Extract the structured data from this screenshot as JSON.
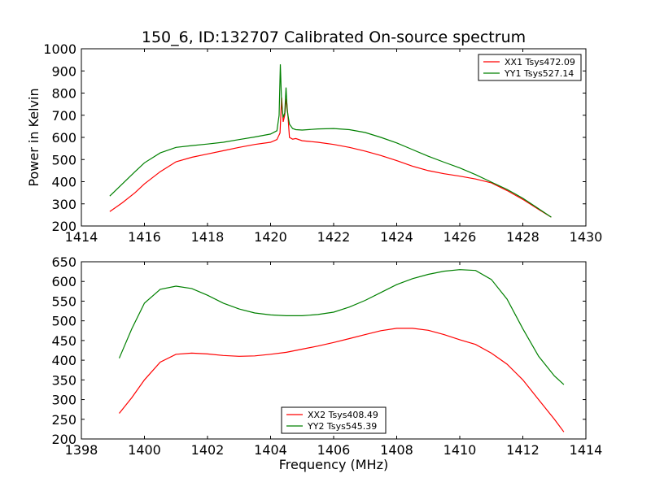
{
  "title": "150_6, ID:132707 Calibrated On-source spectrum",
  "chart_data": [
    {
      "type": "line",
      "xlim": [
        1414,
        1430
      ],
      "ylim": [
        200,
        1000
      ],
      "xticks": [
        "1414",
        "1416",
        "1418",
        "1420",
        "1422",
        "1424",
        "1426",
        "1428",
        "1430"
      ],
      "yticks": [
        "200",
        "300",
        "400",
        "500",
        "600",
        "700",
        "800",
        "900",
        "1000"
      ],
      "xlabel": "",
      "ylabel": "Power in Kelvin",
      "legend_position": "top-right",
      "series": [
        {
          "name": "XX1 Tsys472.09",
          "color": "#ff0000",
          "x": [
            1414.9,
            1415.3,
            1415.7,
            1416.0,
            1416.5,
            1417.0,
            1417.5,
            1418.0,
            1418.5,
            1419.0,
            1419.5,
            1420.0,
            1420.2,
            1420.3,
            1420.35,
            1420.4,
            1420.45,
            1420.5,
            1420.55,
            1420.6,
            1420.7,
            1420.8,
            1421.0,
            1421.5,
            1422.0,
            1422.5,
            1423.0,
            1423.5,
            1424.0,
            1424.5,
            1425.0,
            1425.5,
            1426.0,
            1426.5,
            1427.0,
            1427.5,
            1428.0,
            1428.5,
            1428.9
          ],
          "values": [
            265,
            305,
            350,
            390,
            445,
            490,
            510,
            525,
            540,
            555,
            568,
            578,
            590,
            620,
            780,
            670,
            700,
            775,
            700,
            600,
            592,
            595,
            585,
            578,
            568,
            555,
            538,
            518,
            495,
            470,
            450,
            436,
            425,
            412,
            395,
            360,
            320,
            275,
            240
          ]
        },
        {
          "name": "YY1 Tsys527.14",
          "color": "#008000",
          "x": [
            1414.9,
            1415.3,
            1415.7,
            1416.0,
            1416.5,
            1417.0,
            1417.5,
            1418.0,
            1418.5,
            1419.0,
            1419.5,
            1420.0,
            1420.2,
            1420.27,
            1420.31,
            1420.35,
            1420.4,
            1420.45,
            1420.49,
            1420.53,
            1420.6,
            1420.7,
            1420.8,
            1421.0,
            1421.5,
            1422.0,
            1422.5,
            1423.0,
            1423.5,
            1424.0,
            1424.5,
            1425.0,
            1425.5,
            1426.0,
            1426.5,
            1427.0,
            1427.5,
            1428.0,
            1428.5,
            1428.9
          ],
          "values": [
            335,
            390,
            445,
            485,
            530,
            555,
            563,
            570,
            578,
            590,
            602,
            615,
            630,
            700,
            930,
            750,
            690,
            710,
            825,
            720,
            660,
            640,
            635,
            633,
            638,
            640,
            635,
            622,
            600,
            575,
            545,
            515,
            488,
            462,
            432,
            398,
            365,
            325,
            278,
            240
          ]
        }
      ]
    },
    {
      "type": "line",
      "xlim": [
        1398,
        1414
      ],
      "ylim": [
        200,
        650
      ],
      "xticks": [
        "1398",
        "1400",
        "1402",
        "1404",
        "1406",
        "1408",
        "1410",
        "1412",
        "1414"
      ],
      "yticks": [
        "200",
        "250",
        "300",
        "350",
        "400",
        "450",
        "500",
        "550",
        "600",
        "650"
      ],
      "xlabel": "Frequency (MHz)",
      "ylabel": "",
      "legend_position": "bottom-center",
      "series": [
        {
          "name": "XX2 Tsys408.49",
          "color": "#ff0000",
          "x": [
            1399.2,
            1399.6,
            1400.0,
            1400.5,
            1401.0,
            1401.5,
            1402.0,
            1402.5,
            1403.0,
            1403.5,
            1404.0,
            1404.5,
            1405.0,
            1405.5,
            1406.0,
            1406.5,
            1407.0,
            1407.5,
            1408.0,
            1408.5,
            1409.0,
            1409.5,
            1410.0,
            1410.5,
            1411.0,
            1411.5,
            1412.0,
            1412.5,
            1413.0,
            1413.3
          ],
          "values": [
            265,
            305,
            350,
            395,
            415,
            418,
            416,
            412,
            410,
            411,
            415,
            420,
            428,
            436,
            445,
            455,
            465,
            475,
            481,
            481,
            476,
            465,
            452,
            440,
            418,
            390,
            350,
            300,
            250,
            218
          ]
        },
        {
          "name": "YY2 Tsys545.39",
          "color": "#008000",
          "x": [
            1399.2,
            1399.6,
            1400.0,
            1400.5,
            1401.0,
            1401.5,
            1402.0,
            1402.5,
            1403.0,
            1403.5,
            1404.0,
            1404.5,
            1405.0,
            1405.5,
            1406.0,
            1406.5,
            1407.0,
            1407.5,
            1408.0,
            1408.5,
            1409.0,
            1409.5,
            1410.0,
            1410.5,
            1411.0,
            1411.5,
            1412.0,
            1412.5,
            1413.0,
            1413.3
          ],
          "values": [
            405,
            480,
            545,
            580,
            588,
            582,
            565,
            545,
            530,
            520,
            515,
            513,
            513,
            516,
            522,
            535,
            552,
            572,
            592,
            607,
            618,
            626,
            630,
            628,
            605,
            555,
            480,
            410,
            360,
            338
          ]
        }
      ]
    }
  ]
}
